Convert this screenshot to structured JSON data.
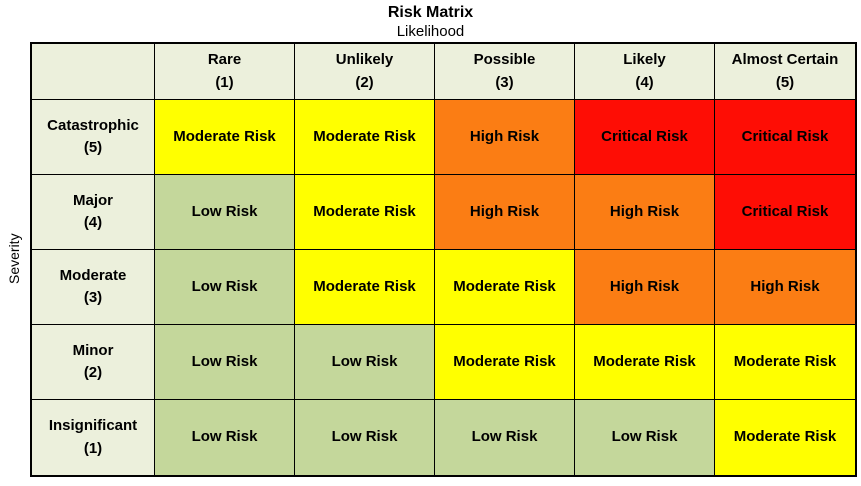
{
  "colors": {
    "low": "#C4D79B",
    "moderate": "#FFFF00",
    "high": "#FB7D14",
    "critical": "#FE0D05",
    "header_bg": "#ECF0DC",
    "border": "#000000"
  },
  "chart_data": {
    "type": "heatmap",
    "title": "Risk Matrix",
    "xlabel": "Likelihood",
    "ylabel": "Severity",
    "columns": [
      "Rare\n(1)",
      "Unlikely\n(2)",
      "Possible\n(3)",
      "Likely\n(4)",
      "Almost Certain\n(5)"
    ],
    "rows": [
      {
        "label": "Catastrophic\n(5)",
        "cells": [
          {
            "label": "Moderate Risk",
            "level": "moderate"
          },
          {
            "label": "Moderate Risk",
            "level": "moderate"
          },
          {
            "label": "High Risk",
            "level": "high"
          },
          {
            "label": "Critical Risk",
            "level": "critical"
          },
          {
            "label": "Critical Risk",
            "level": "critical"
          }
        ]
      },
      {
        "label": "Major\n(4)",
        "cells": [
          {
            "label": "Low Risk",
            "level": "low"
          },
          {
            "label": "Moderate Risk",
            "level": "moderate"
          },
          {
            "label": "High Risk",
            "level": "high"
          },
          {
            "label": "High Risk",
            "level": "high"
          },
          {
            "label": "Critical Risk",
            "level": "critical"
          }
        ]
      },
      {
        "label": "Moderate\n(3)",
        "cells": [
          {
            "label": "Low Risk",
            "level": "low"
          },
          {
            "label": "Moderate Risk",
            "level": "moderate"
          },
          {
            "label": "Moderate Risk",
            "level": "moderate"
          },
          {
            "label": "High Risk",
            "level": "high"
          },
          {
            "label": "High Risk",
            "level": "high"
          }
        ]
      },
      {
        "label": "Minor\n(2)",
        "cells": [
          {
            "label": "Low Risk",
            "level": "low"
          },
          {
            "label": "Low Risk",
            "level": "low"
          },
          {
            "label": "Moderate Risk",
            "level": "moderate"
          },
          {
            "label": "Moderate Risk",
            "level": "moderate"
          },
          {
            "label": "Moderate Risk",
            "level": "moderate"
          }
        ]
      },
      {
        "label": "Insignificant\n(1)",
        "cells": [
          {
            "label": "Low Risk",
            "level": "low"
          },
          {
            "label": "Low Risk",
            "level": "low"
          },
          {
            "label": "Low Risk",
            "level": "low"
          },
          {
            "label": "Low Risk",
            "level": "low"
          },
          {
            "label": "Moderate Risk",
            "level": "moderate"
          }
        ]
      }
    ],
    "risk_levels": {
      "low": "Low Risk",
      "moderate": "Moderate Risk",
      "high": "High Risk",
      "critical": "Critical Risk"
    }
  }
}
